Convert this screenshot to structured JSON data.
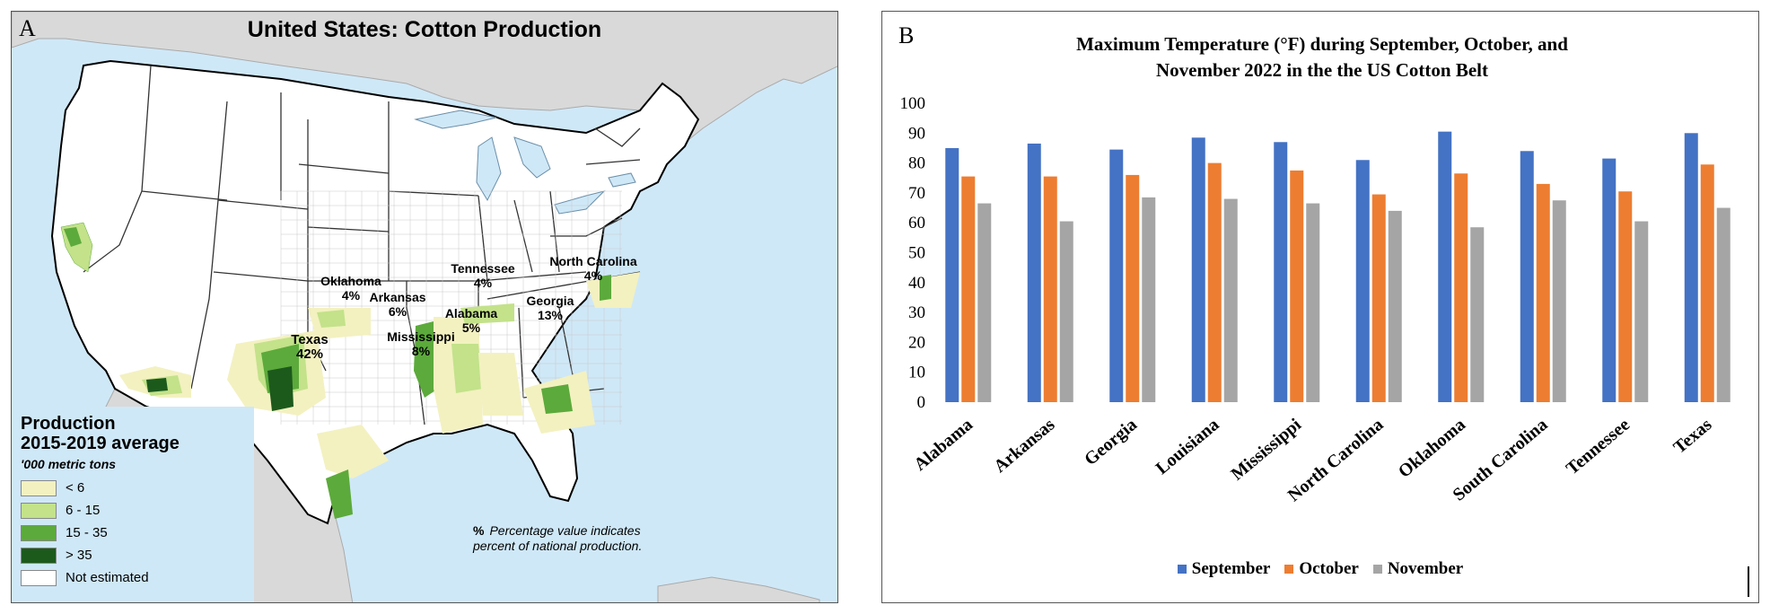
{
  "panel_a": {
    "letter": "A",
    "title": "United States: Cotton Production",
    "legend_title_1": "Production",
    "legend_title_2": "2015-2019 average",
    "legend_unit": "'000 metric tons",
    "legend_items": [
      {
        "label": "< 6",
        "color": "#f3f1c0"
      },
      {
        "label": "6 - 15",
        "color": "#c3e28a"
      },
      {
        "label": "15 - 35",
        "color": "#5caa3b"
      },
      {
        "label": "> 35",
        "color": "#1c5a1c"
      },
      {
        "label": "Not estimated",
        "color": "#ffffff"
      }
    ],
    "note_symbol": "%",
    "note_text": "Percentage value indicates percent of national production.",
    "states": [
      {
        "name": "Oklahoma",
        "pct": "4%"
      },
      {
        "name": "Arkansas",
        "pct": "6%"
      },
      {
        "name": "Tennessee",
        "pct": "4%"
      },
      {
        "name": "North Carolina",
        "pct": "4%"
      },
      {
        "name": "Georgia",
        "pct": "13%"
      },
      {
        "name": "Alabama",
        "pct": "5%"
      },
      {
        "name": "Mississippi",
        "pct": "8%"
      },
      {
        "name": "Texas",
        "pct": "42%"
      }
    ],
    "colors": {
      "water": "#cfe8f7",
      "land": "#ffffff",
      "border": "#333333",
      "foreign": "#d9d9d9"
    }
  },
  "panel_b": {
    "letter": "B",
    "chart_data": {
      "type": "bar",
      "title": "Maximum Temperature (°F) during September, October, and November 2022 in the the US Cotton Belt",
      "title_line1": "Maximum Temperature (°F) during September, October, and",
      "title_line2": "November 2022 in the the US Cotton Belt",
      "categories": [
        "Alabama",
        "Arkansas",
        "Georgia",
        "Louisiana",
        "Mississippi",
        "North Carolina",
        "Oklahoma",
        "South Carolina",
        "Tennessee",
        "Texas"
      ],
      "series": [
        {
          "name": "September",
          "color": "#4472c4",
          "values": [
            85,
            86.5,
            84.5,
            88.5,
            87,
            81,
            90.5,
            84,
            81.5,
            90
          ]
        },
        {
          "name": "October",
          "color": "#ed7d31",
          "values": [
            75.5,
            75.5,
            76,
            80,
            77.5,
            69.5,
            76.5,
            73,
            70.5,
            79.5
          ]
        },
        {
          "name": "November",
          "color": "#a5a5a5",
          "values": [
            66.5,
            60.5,
            68.5,
            68,
            66.5,
            64,
            58.5,
            67.5,
            60.5,
            65
          ]
        }
      ],
      "xlabel": "",
      "ylabel": "",
      "ylim": [
        0,
        100
      ],
      "yticks": [
        0,
        10,
        20,
        30,
        40,
        50,
        60,
        70,
        80,
        90,
        100
      ],
      "grid": false,
      "legend_position": "bottom"
    }
  }
}
